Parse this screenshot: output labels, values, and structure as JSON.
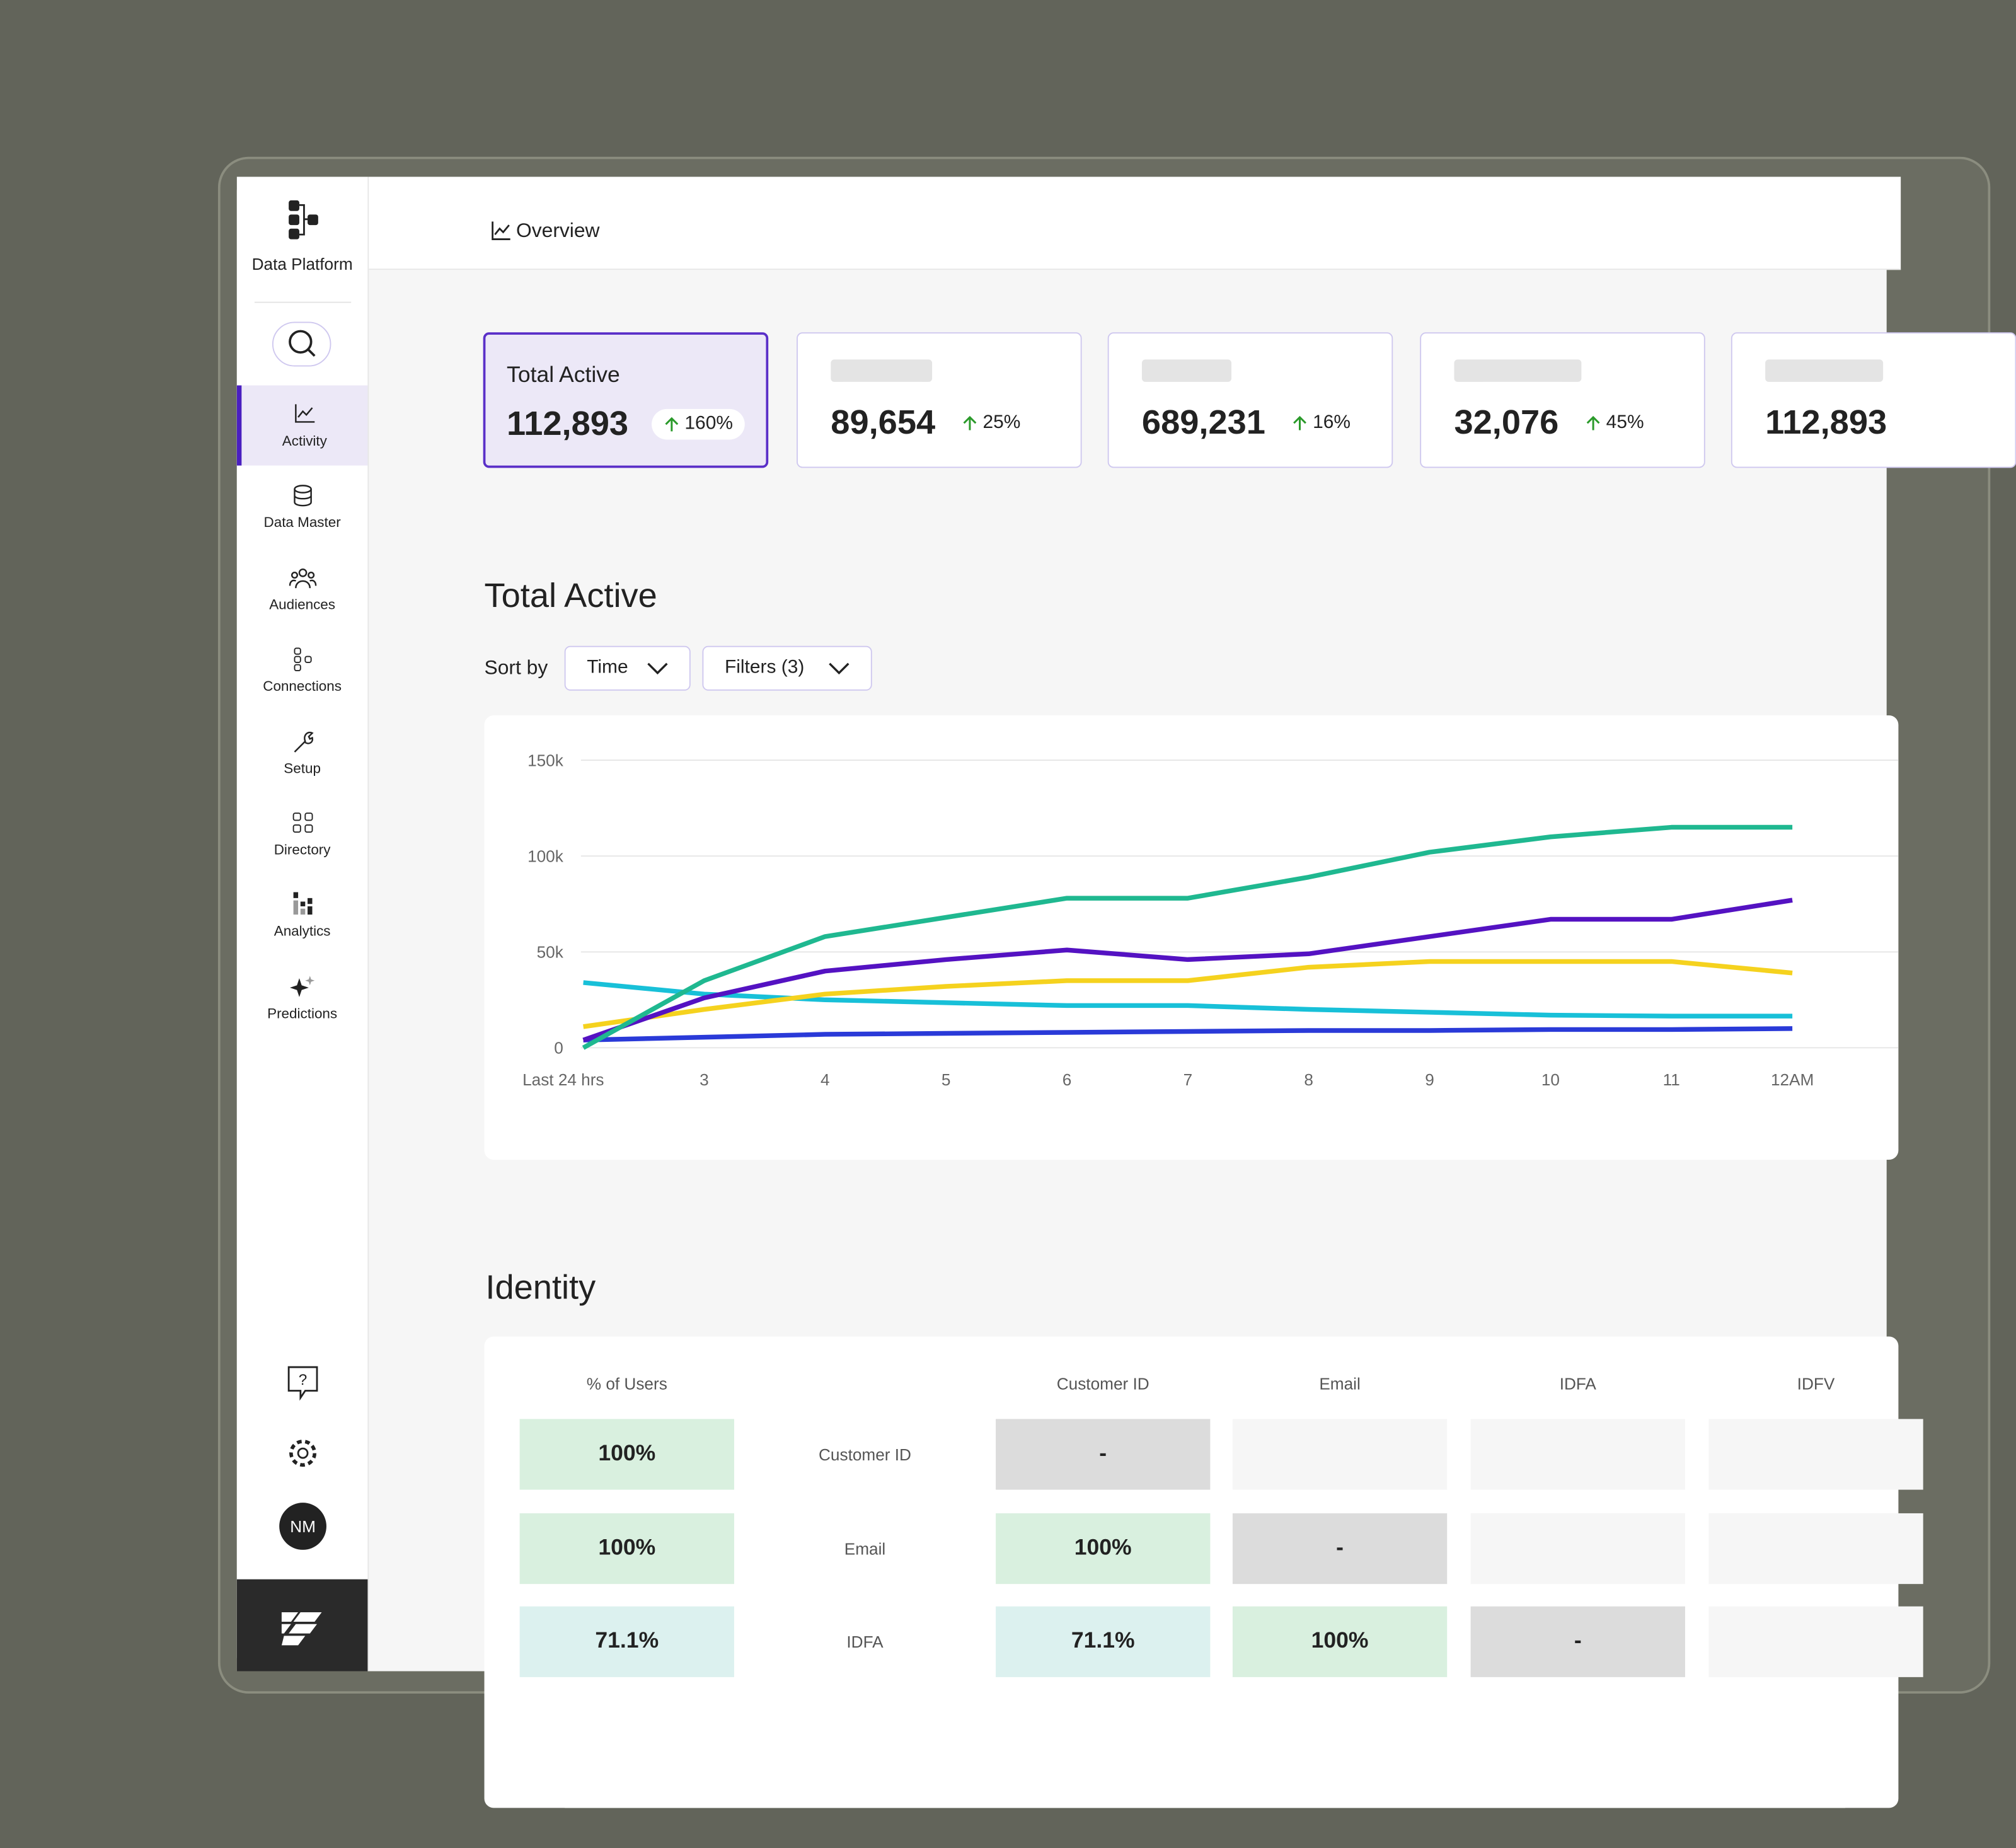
{
  "sidebar": {
    "brand": "Data Platform",
    "nav": [
      "Activity",
      "Data Master",
      "Audiences",
      "Connections",
      "Setup",
      "Directory",
      "Analytics",
      "Predictions"
    ],
    "avatar": "NM"
  },
  "header": {
    "title": "Overview"
  },
  "kpis": [
    {
      "label": "Total Active",
      "value": "112,893",
      "change": "160%"
    },
    {
      "value": "89,654",
      "change": "25%"
    },
    {
      "value": "689,231",
      "change": "16%"
    },
    {
      "value": "32,076",
      "change": "45%"
    },
    {
      "value": "112,893"
    }
  ],
  "activity": {
    "title": "Total Active",
    "sort_label": "Sort by",
    "sort_value": "Time",
    "filters": "Filters (3)"
  },
  "chart_data": {
    "type": "line",
    "categories": [
      "Last 24 hrs",
      "3",
      "4",
      "5",
      "6",
      "7",
      "8",
      "9",
      "10",
      "11",
      "12AM"
    ],
    "series": [
      {
        "color": "#1fb890",
        "values": [
          0,
          35000,
          58000,
          68000,
          78000,
          78000,
          89000,
          102000,
          110000,
          115000,
          115000
        ]
      },
      {
        "color": "#5412c2",
        "values": [
          4000,
          26000,
          40000,
          46000,
          51000,
          46000,
          49000,
          58000,
          67000,
          67000,
          77000
        ]
      },
      {
        "color": "#f5d21e",
        "values": [
          11000,
          20000,
          28000,
          32000,
          35000,
          35000,
          42000,
          45000,
          45000,
          45000,
          39000
        ]
      },
      {
        "color": "#18c0d8",
        "values": [
          34000,
          28000,
          25000,
          23500,
          22000,
          22000,
          20000,
          18500,
          17000,
          16500,
          16500
        ]
      },
      {
        "color": "#2a3ad8",
        "values": [
          4000,
          5500,
          7000,
          7500,
          8000,
          8500,
          9000,
          9000,
          9500,
          9500,
          10000
        ]
      }
    ],
    "ylim": [
      0,
      150000
    ],
    "yticks": [
      0,
      {
        "value": 50000,
        "label": "50k"
      },
      {
        "value": 100000,
        "label": "100k"
      },
      {
        "value": 150000,
        "label": "150k"
      }
    ],
    "grid": true
  },
  "identity": {
    "title": "Identity",
    "columns": [
      "% of Users",
      "Customer ID",
      "Email",
      "IDFA",
      "IDFV"
    ],
    "rows": [
      {
        "pct": "100%",
        "pct_color": "#d9f0df",
        "label": "Customer ID",
        "cells": [
          {
            "text": "-",
            "color": "#dcdcdc"
          }
        ]
      },
      {
        "pct": "100%",
        "pct_color": "#d9f0df",
        "label": "Email",
        "cells": [
          {
            "text": "100%",
            "color": "#d9f0df"
          },
          {
            "text": "-",
            "color": "#dcdcdc"
          }
        ]
      },
      {
        "pct": "71.1%",
        "pct_color": "#dcf1ef",
        "label": "IDFA",
        "cells": [
          {
            "text": "71.1%",
            "color": "#dcf1ef"
          },
          {
            "text": "100%",
            "color": "#d9f0df"
          },
          {
            "text": "-",
            "color": "#dcdcdc"
          }
        ]
      }
    ]
  }
}
